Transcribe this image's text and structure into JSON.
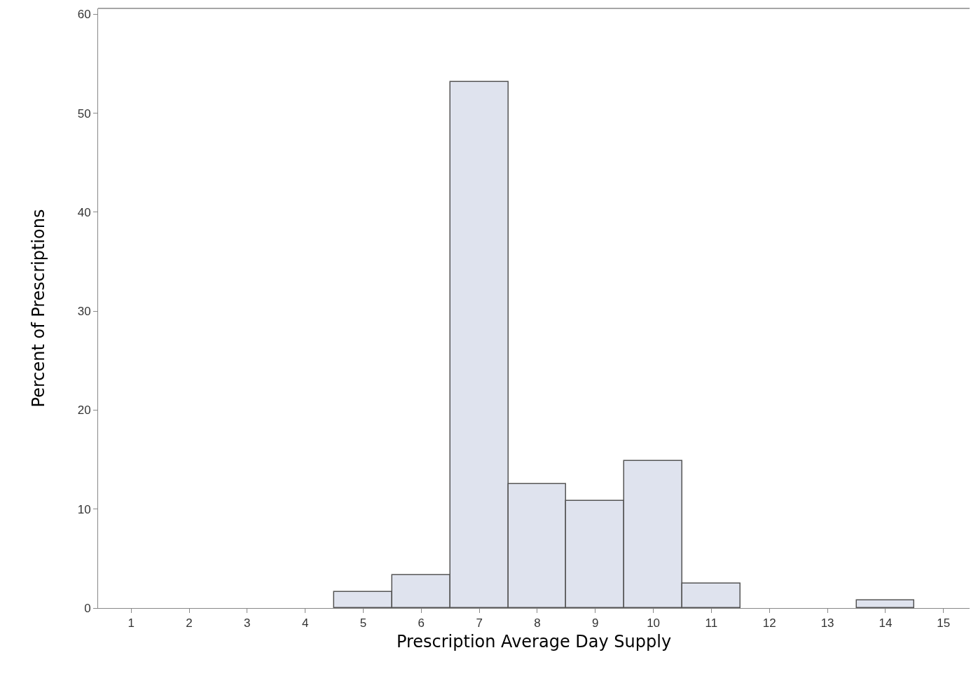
{
  "chart_data": {
    "type": "histogram",
    "xlabel": "Prescription Average Day Supply",
    "ylabel": "Percent of Prescriptions",
    "bins": [
      0.5,
      1.5,
      2.5,
      3.5,
      4.5,
      5.5,
      6.5,
      7.5,
      8.5,
      9.5,
      10.5,
      11.5,
      12.5,
      13.5,
      14.5,
      15.5
    ],
    "values": [
      0,
      0,
      0,
      0,
      1.6,
      3.3,
      53.2,
      12.5,
      10.8,
      14.9,
      2.5,
      0,
      0,
      0.8,
      0
    ],
    "color": "#dfe3ee",
    "xlim": [
      0.43,
      15.45
    ],
    "xticks": [
      1,
      2,
      3,
      4,
      5,
      6,
      7,
      8,
      9,
      10,
      11,
      12,
      13,
      14,
      15
    ],
    "ylim": [
      0,
      60.6
    ],
    "yticks": [
      0,
      10,
      20,
      30,
      40,
      50,
      60
    ],
    "grid": false
  }
}
